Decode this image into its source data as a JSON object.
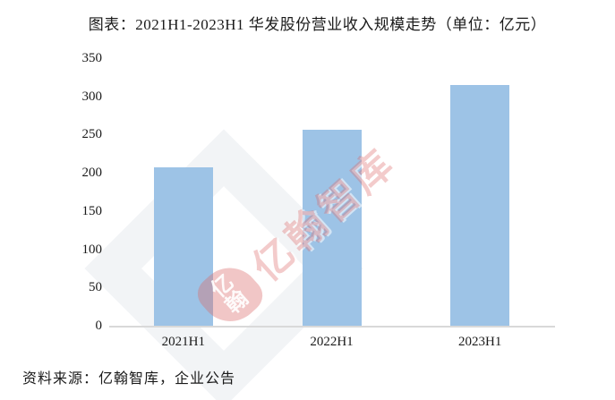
{
  "title": "图表：2021H1-2023H1 华发股份营业收入规模走势（单位：亿元）",
  "source": "资料来源：亿翰智库，企业公告",
  "watermark": {
    "text": "亿翰智库",
    "logo_top_char": "亿",
    "logo_bottom_char": "翰",
    "color": "#db6868"
  },
  "colors": {
    "bar": "#9dc3e6",
    "axis_line": "#d9d9d9",
    "text": "#1a1a1a"
  },
  "chart_data": {
    "type": "bar",
    "title": "图表：2021H1-2023H1 华发股份营业收入规模走势（单位：亿元）",
    "unit": "亿元",
    "categories": [
      "2021H1",
      "2022H1",
      "2023H1"
    ],
    "values": [
      207,
      256,
      315
    ],
    "xlabel": "",
    "ylabel": "",
    "ylim": [
      0,
      350
    ],
    "ytick_step": 50,
    "yticks": [
      350,
      300,
      250,
      200,
      150,
      100,
      50,
      0
    ],
    "grid": false,
    "legend": false,
    "bar_color": "#9dc3e6"
  }
}
